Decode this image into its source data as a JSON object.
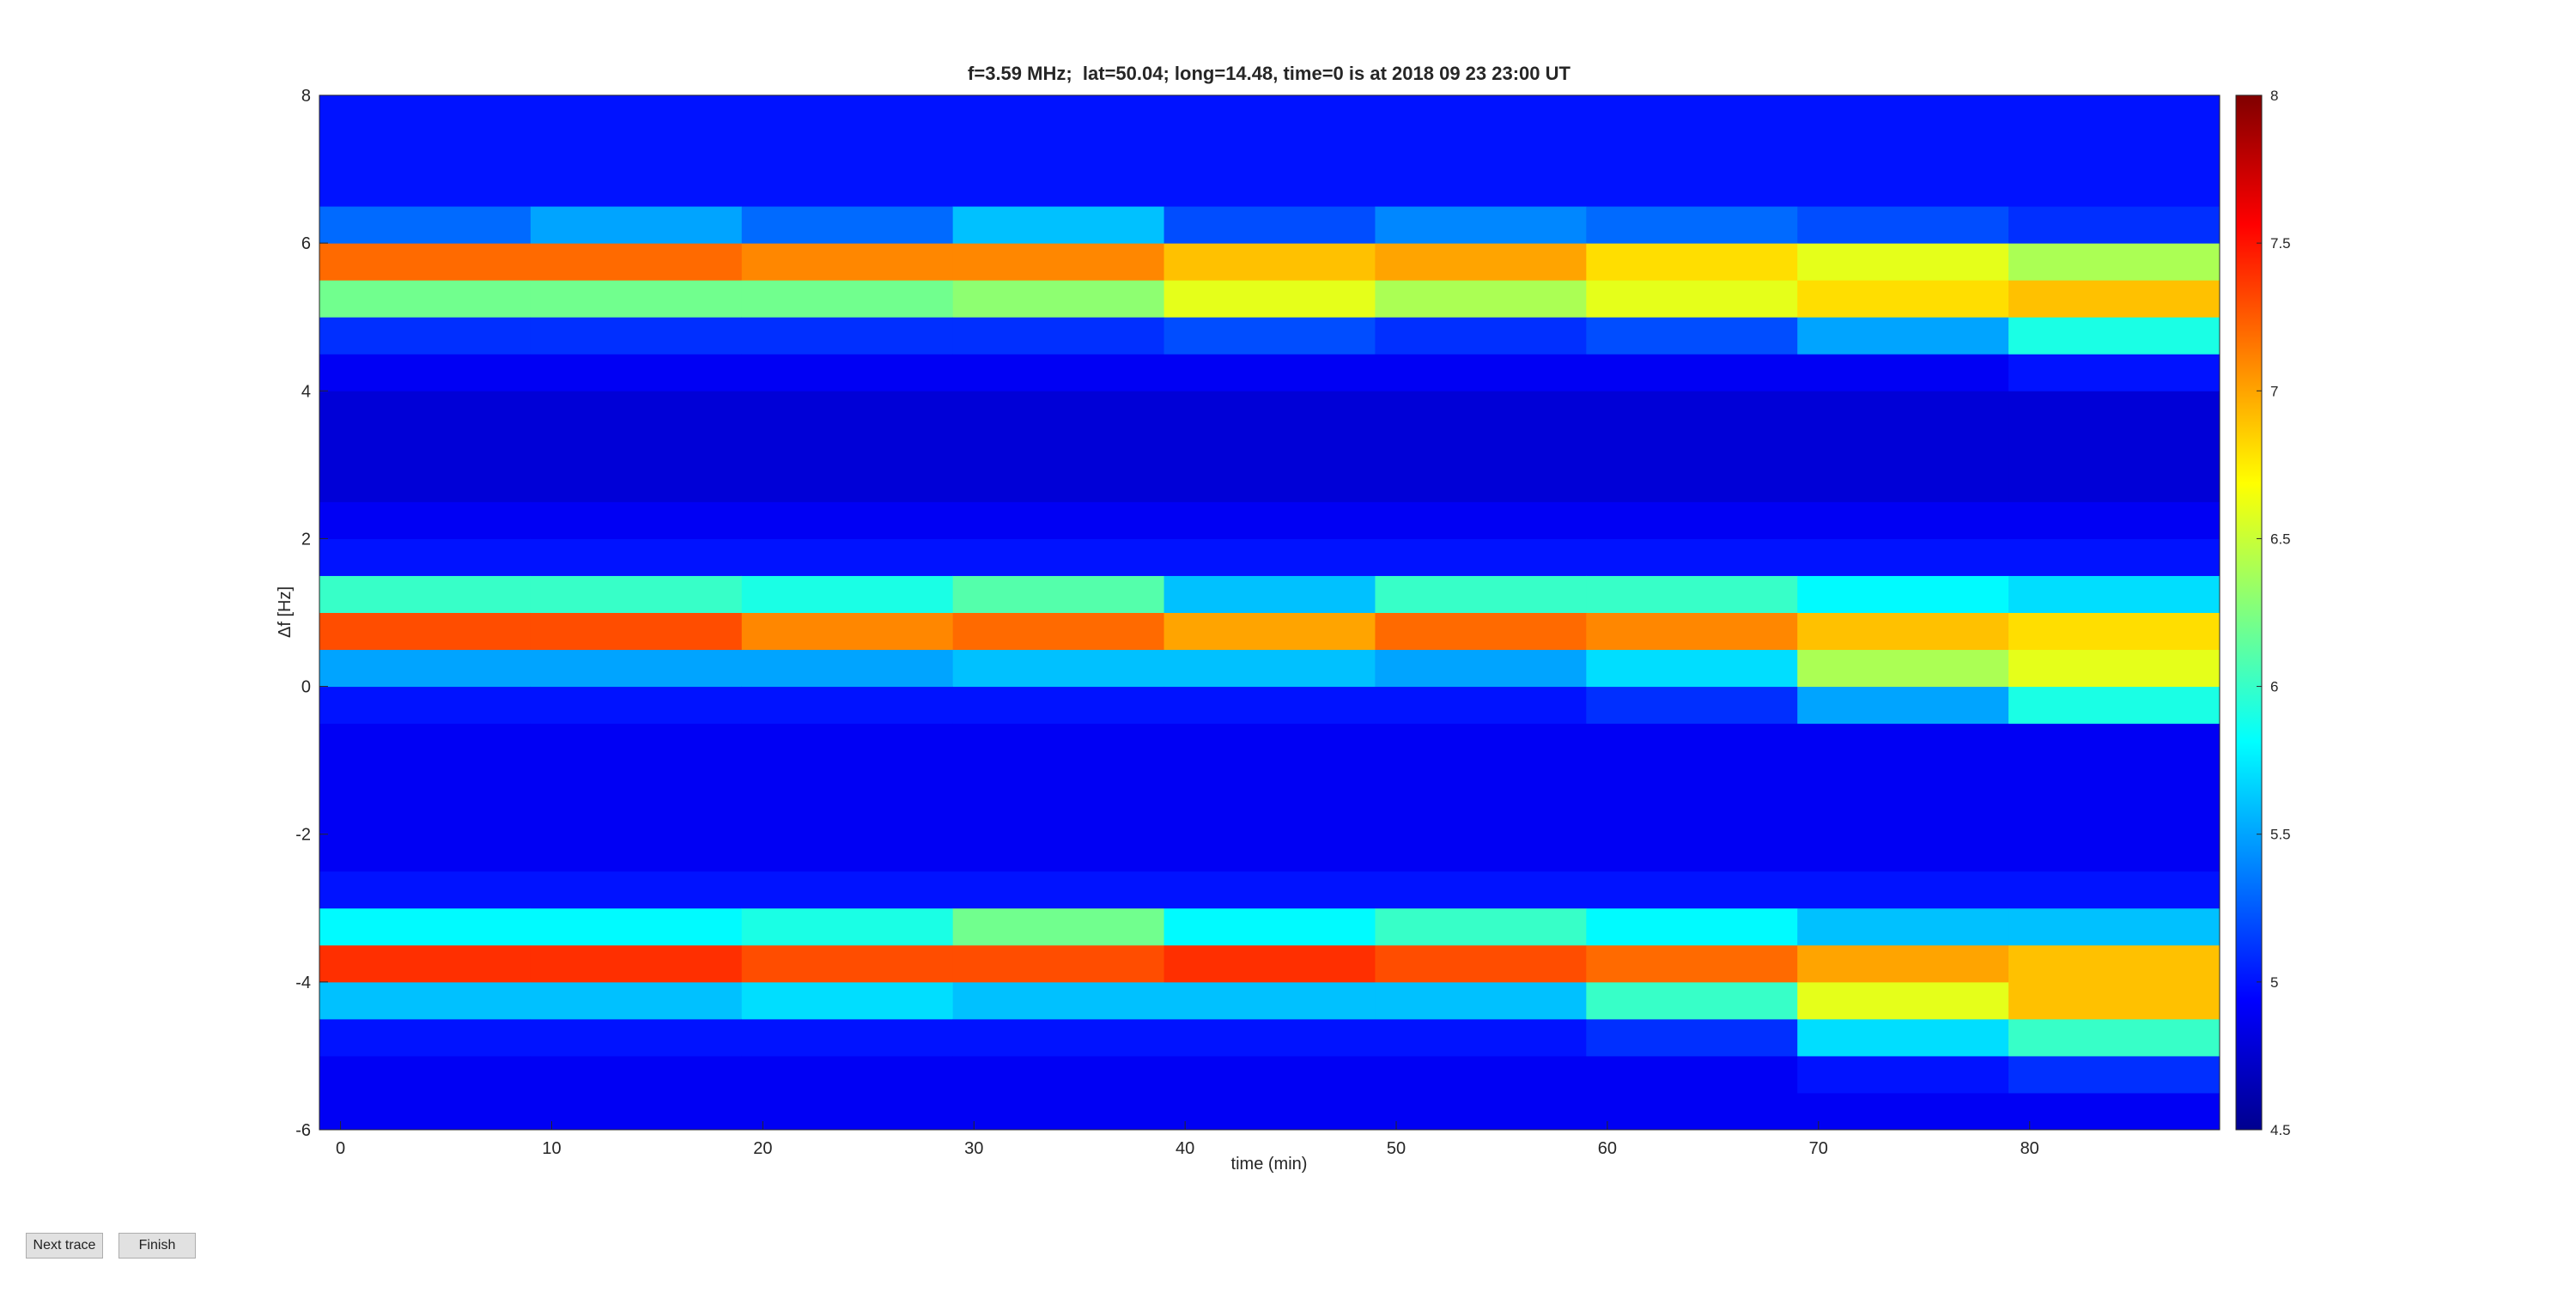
{
  "chart_data": {
    "type": "heatmap",
    "title": "f=3.59 MHz;  lat=50.04; long=14.48, time=0 is at 2018 09 23 23:00 UT",
    "x_label": "time (min)",
    "y_label": "Δf [Hz]",
    "xbins": [
      -1,
      9,
      19,
      29,
      39,
      49,
      59,
      69,
      79,
      89
    ],
    "ybins": [
      -6,
      -5.5,
      -5,
      -4.5,
      -4,
      -3.5,
      -3,
      -2.5,
      -2,
      -1.5,
      -1,
      -0.5,
      0,
      0.5,
      1,
      1.5,
      2,
      2.5,
      3,
      3.5,
      4,
      4.5,
      5,
      5.5,
      6,
      6.5,
      7,
      7.5,
      8
    ],
    "values": [
      [
        4.9,
        4.9,
        5.0,
        5.6,
        7.4,
        5.8,
        5.0,
        4.9,
        4.9,
        4.9,
        4.9,
        5.0,
        5.5,
        7.3,
        6.0,
        5.0,
        4.9,
        4.8,
        4.8,
        4.8,
        4.9,
        5.1,
        6.2,
        7.2,
        5.3,
        5.0,
        5.0,
        5.0
      ],
      [
        4.9,
        4.9,
        5.0,
        5.6,
        7.4,
        5.8,
        5.0,
        4.9,
        4.9,
        4.9,
        4.9,
        5.0,
        5.5,
        7.3,
        6.0,
        5.0,
        4.9,
        4.8,
        4.8,
        4.8,
        4.9,
        5.1,
        6.2,
        7.2,
        5.5,
        5.0,
        5.0,
        5.0
      ],
      [
        4.9,
        4.9,
        5.0,
        5.7,
        7.3,
        5.9,
        5.0,
        4.9,
        4.9,
        4.9,
        4.9,
        5.0,
        5.5,
        7.1,
        5.9,
        5.0,
        4.9,
        4.8,
        4.8,
        4.8,
        4.9,
        5.1,
        6.2,
        7.1,
        5.3,
        5.0,
        5.0,
        5.0
      ],
      [
        4.9,
        4.9,
        5.0,
        5.6,
        7.3,
        6.2,
        5.0,
        4.9,
        4.9,
        4.9,
        4.9,
        5.0,
        5.6,
        7.2,
        6.1,
        5.0,
        4.9,
        4.8,
        4.8,
        4.8,
        4.9,
        5.1,
        6.3,
        7.1,
        5.6,
        5.0,
        5.0,
        5.0
      ],
      [
        4.9,
        4.9,
        5.0,
        5.6,
        7.4,
        5.8,
        5.0,
        4.9,
        4.9,
        4.9,
        4.9,
        5.0,
        5.6,
        7.0,
        5.6,
        5.0,
        4.9,
        4.8,
        4.8,
        4.8,
        4.9,
        5.2,
        6.6,
        6.9,
        5.2,
        5.0,
        5.0,
        5.0
      ],
      [
        4.9,
        4.9,
        5.0,
        5.6,
        7.3,
        6.0,
        5.0,
        4.9,
        4.9,
        4.9,
        4.9,
        5.0,
        5.5,
        7.2,
        6.0,
        5.0,
        4.9,
        4.8,
        4.8,
        4.8,
        4.9,
        5.1,
        6.4,
        7.0,
        5.4,
        5.0,
        5.0,
        5.0
      ],
      [
        4.9,
        4.9,
        5.1,
        6.0,
        7.2,
        5.8,
        5.0,
        4.9,
        4.9,
        4.9,
        4.9,
        5.1,
        5.7,
        7.1,
        6.0,
        5.0,
        4.9,
        4.8,
        4.8,
        4.8,
        4.9,
        5.2,
        6.6,
        6.8,
        5.3,
        5.0,
        5.0,
        5.0
      ],
      [
        4.9,
        5.0,
        5.7,
        6.6,
        7.0,
        5.6,
        5.0,
        4.9,
        4.9,
        4.9,
        4.9,
        5.5,
        6.4,
        6.9,
        5.8,
        5.0,
        4.9,
        4.8,
        4.8,
        4.8,
        4.9,
        5.5,
        6.8,
        6.6,
        5.2,
        5.0,
        5.0,
        5.0
      ],
      [
        4.9,
        5.1,
        6.0,
        6.9,
        6.9,
        5.6,
        5.0,
        4.9,
        4.9,
        4.9,
        4.9,
        5.9,
        6.6,
        6.8,
        5.7,
        5.0,
        4.9,
        4.8,
        4.8,
        4.8,
        5.0,
        5.9,
        6.9,
        6.4,
        5.1,
        5.0,
        5.0,
        5.0
      ]
    ],
    "xlim": [
      -1,
      89
    ],
    "ylim": [
      -6,
      8
    ],
    "xticks": [
      0,
      10,
      20,
      30,
      40,
      50,
      60,
      70,
      80
    ],
    "yticks": [
      -6,
      -4,
      -2,
      0,
      2,
      4,
      6,
      8
    ],
    "clim": [
      4.5,
      8
    ],
    "cticks": [
      4.5,
      5,
      5.5,
      6,
      6.5,
      7,
      7.5,
      8
    ],
    "colormap": "jet"
  },
  "buttons": [
    "Next trace",
    "Finish"
  ]
}
